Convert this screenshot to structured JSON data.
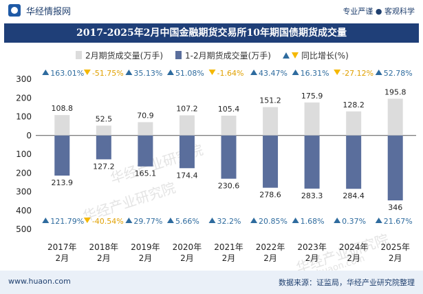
{
  "header": {
    "brand": "华经情报网",
    "tagline": "专业严谨 ● 客观科学"
  },
  "footer": {
    "url": "www.huaon.com",
    "source": "数据来源：证监局，华经产业研究院整理"
  },
  "colors": {
    "title_bg": "#1f3f78",
    "bar_up": "#dcdcdc",
    "bar_down": "#5a6e9c",
    "up_triangle": "#2e6b9e",
    "down_triangle": "#f5b800",
    "pct_text": "#2e6b9e",
    "pct_neg_text": "#e0a000"
  },
  "chart_data": {
    "type": "bar",
    "title": "2017-2025年2月中国金融期货交易所10年期国债期货成交量",
    "categories": [
      "2017年\n2月",
      "2018年\n2月",
      "2019年\n2月",
      "2020年\n2月",
      "2021年\n2月",
      "2022年\n2月",
      "2023年\n2月",
      "2024年\n2月",
      "2025年\n2月"
    ],
    "legend": [
      "2月期货成交量(万手)",
      "1-2月期货成交量(万手)",
      "同比增长(%)"
    ],
    "series": [
      {
        "name": "2月期货成交量(万手)",
        "values": [
          108.8,
          52.5,
          70.9,
          107.2,
          105.4,
          151.2,
          175.9,
          128.2,
          195.8
        ]
      },
      {
        "name": "1-2月期货成交量(万手)",
        "values": [
          -213.9,
          -127.2,
          -165.1,
          -174.4,
          -230.6,
          -278.6,
          -283.3,
          -284.4,
          -346
        ]
      }
    ],
    "value_labels_top": [
      "108.8",
      "52.5",
      "70.9",
      "107.2",
      "105.4",
      "151.2",
      "175.9",
      "128.2",
      "195.8"
    ],
    "value_labels_bottom": [
      "213.9",
      "127.2",
      "165.1",
      "174.4",
      "230.6",
      "278.6",
      "283.3",
      "284.4",
      "346"
    ],
    "growth_top": [
      163.01,
      -51.75,
      35.13,
      51.08,
      -1.64,
      43.47,
      16.31,
      -27.12,
      52.78
    ],
    "growth_top_labels": [
      "163.01%",
      "-51.75%",
      "35.13%",
      "51.08%",
      "-1.64%",
      "43.47%",
      "16.31%",
      "-27.12%",
      "52.78%"
    ],
    "growth_bottom": [
      121.79,
      -40.54,
      29.77,
      5.66,
      32.2,
      20.85,
      1.68,
      0.37,
      21.67
    ],
    "growth_bottom_labels": [
      "121.79%",
      "-40.54%",
      "29.77%",
      "5.66%",
      "32.2%",
      "20.85%",
      "1.68%",
      "0.37%",
      "21.67%"
    ],
    "ylim": [
      -500,
      300
    ],
    "yticks": [
      300,
      200,
      100,
      0,
      -100,
      -200,
      -300,
      -400,
      -500
    ],
    "ytick_labels": [
      "300",
      "200",
      "100",
      "0",
      "100",
      "200",
      "300",
      "400",
      "500"
    ],
    "watermark": "华经产业研究院",
    "watermark_url": "www.huaon.com"
  }
}
